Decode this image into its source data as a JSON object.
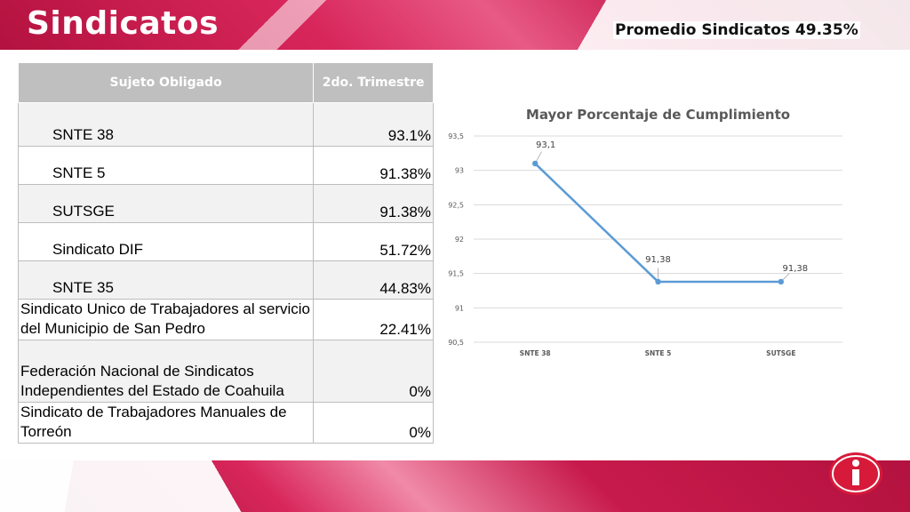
{
  "slide": {
    "title": "Sindicatos",
    "average_text": "Promedio  Sindicatos 49.35%"
  },
  "table": {
    "headers": [
      "Sujeto Obligado",
      "2do. Trimestre"
    ],
    "rows": [
      {
        "name": "SNTE 38",
        "value": "93.1%"
      },
      {
        "name": "SNTE 5",
        "value": "91.38%"
      },
      {
        "name": "SUTSGE",
        "value": "91.38%"
      },
      {
        "name": "Sindicato DIF",
        "value": "51.72%"
      },
      {
        "name": "SNTE 35",
        "value": "44.83%"
      },
      {
        "name": "Sindicato Unico de Trabajadores al servicio del Municipio de San Pedro",
        "value": "22.41%"
      },
      {
        "name": "Federación Nacional de Sindicatos Independientes del Estado de Coahuila",
        "value": "0%"
      },
      {
        "name": "Sindicato de Trabajadores Manuales de Torreón",
        "value": "0%"
      }
    ]
  },
  "chart_data": {
    "type": "line",
    "title": "Mayor Porcentaje de Cumplimiento",
    "categories": [
      "SNTE 38",
      "SNTE 5",
      "SUTSGE"
    ],
    "values": [
      93.1,
      91.38,
      91.38
    ],
    "data_labels": [
      "93,1",
      "91,38",
      "91,38"
    ],
    "y_ticks": [
      "93,5",
      "93",
      "92,5",
      "92",
      "91,5",
      "91",
      "90,5"
    ],
    "y_tick_values": [
      93.5,
      93,
      92.5,
      92,
      91.5,
      91,
      90.5
    ],
    "ylim": [
      90.5,
      93.5
    ],
    "grid": true,
    "legend": "none",
    "line_color": "#5b9bd5"
  },
  "colors": {
    "brand": "#c71a4c",
    "header_gray": "#bfbfbf"
  },
  "logo": {
    "icon": "info-i-icon"
  }
}
